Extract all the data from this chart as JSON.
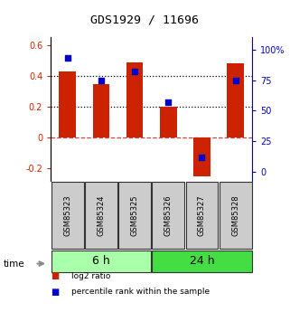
{
  "title": "GDS1929 / 11696",
  "samples": [
    "GSM85323",
    "GSM85324",
    "GSM85325",
    "GSM85326",
    "GSM85327",
    "GSM85328"
  ],
  "log2_ratio": [
    0.43,
    0.35,
    0.49,
    0.2,
    -0.25,
    0.48
  ],
  "percentile_rank": [
    93,
    75,
    82,
    57,
    12,
    75
  ],
  "groups": [
    {
      "label": "6 h",
      "indices": [
        0,
        1,
        2
      ],
      "color": "#aaffaa"
    },
    {
      "label": "24 h",
      "indices": [
        3,
        4,
        5
      ],
      "color": "#44dd44"
    }
  ],
  "bar_color": "#cc2200",
  "dot_color": "#0000cc",
  "ylim_left": [
    -0.28,
    0.65
  ],
  "ylim_right": [
    -7.5,
    110
  ],
  "yticks_left": [
    -0.2,
    0.0,
    0.2,
    0.4,
    0.6
  ],
  "ytick_labels_left": [
    "-0.2",
    "0",
    "0.2",
    "0.4",
    "0.6"
  ],
  "yticks_right": [
    0,
    25,
    50,
    75,
    100
  ],
  "ytick_labels_right": [
    "0",
    "25",
    "50",
    "75",
    "100%"
  ],
  "hlines_dotted": [
    0.2,
    0.4
  ],
  "hline_zero_color": "#cc4444",
  "bar_width": 0.5,
  "sample_box_color": "#cccccc",
  "sample_box_edge_color": "#333333",
  "legend_items": [
    {
      "color": "#cc2200",
      "label": "log2 ratio"
    },
    {
      "color": "#0000cc",
      "label": "percentile rank within the sample"
    }
  ]
}
